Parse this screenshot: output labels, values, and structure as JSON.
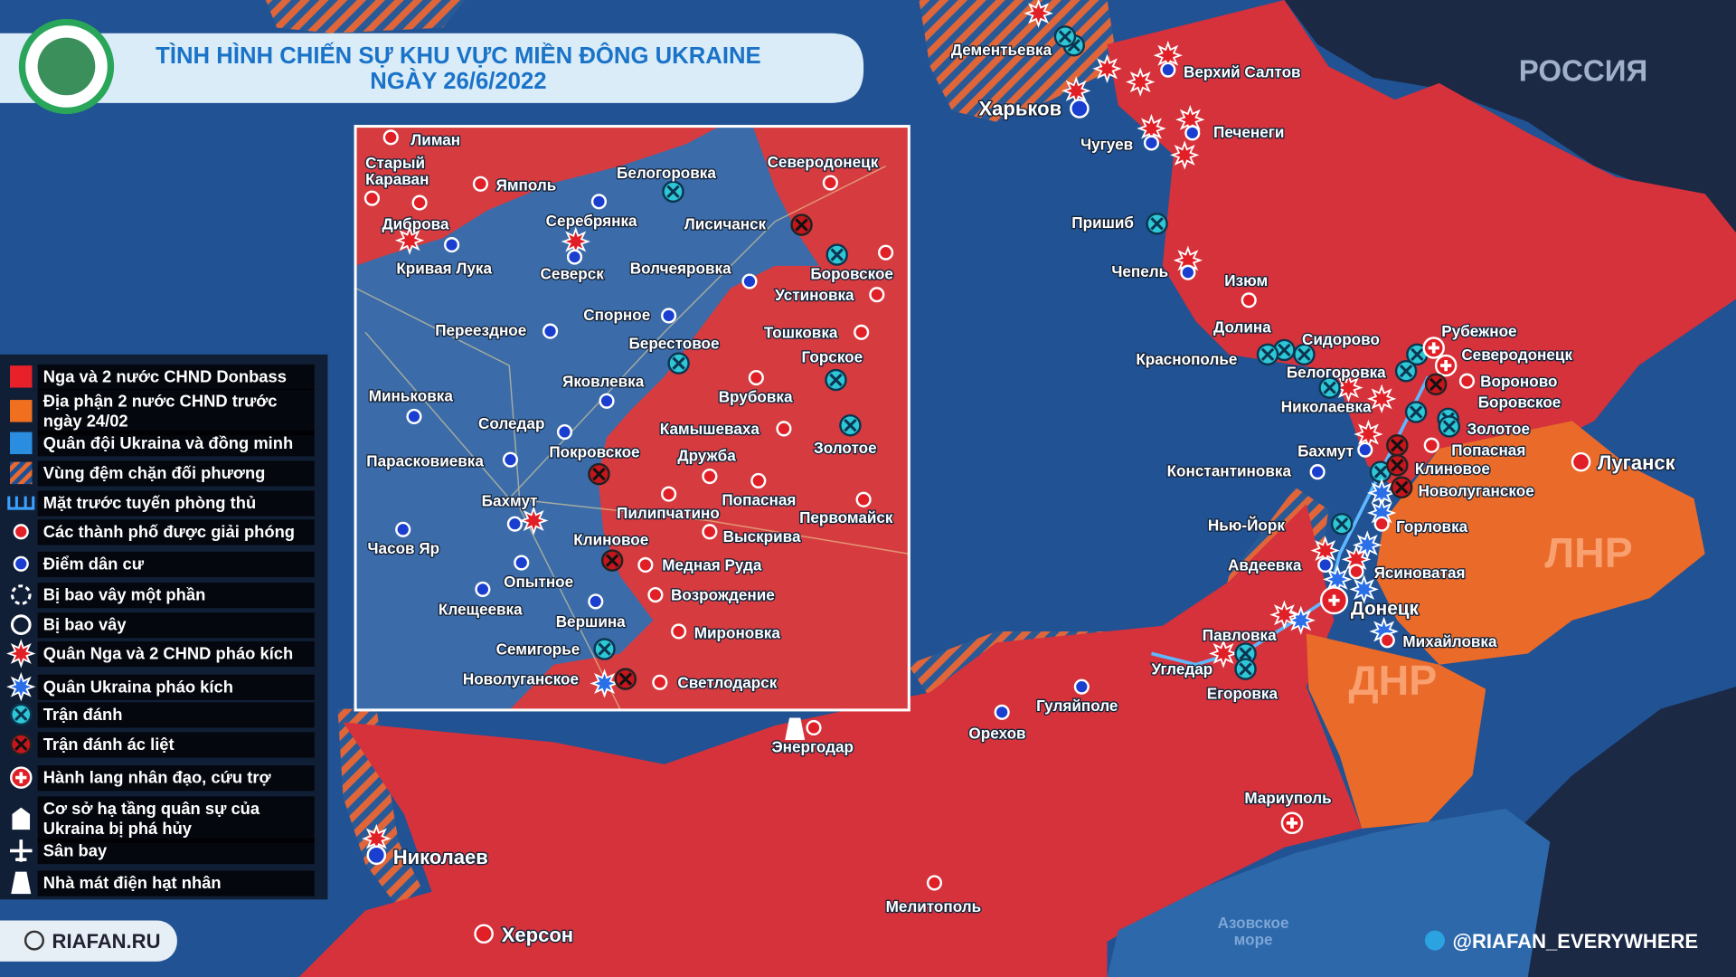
{
  "header": {
    "title": [
      "TÌNH HÌNH CHIẾN SỰ KHU VỰC MIỀN ĐÔNG UKRAINE",
      "NGÀY 26/6/2022"
    ]
  },
  "watermark": "РОССИЯ",
  "legend": {
    "items": [
      [
        "Nga và 2 nước CHND Donbass"
      ],
      [
        "Địa phận 2 nước CHND trước",
        "ngày 24/02"
      ],
      [
        "Quân đội Ukraina và đồng minh"
      ],
      [
        "Vùng đệm chặn đối phương"
      ],
      [
        "Mặt trước tuyến phòng thủ"
      ],
      [
        "Các thành phố được giải phóng"
      ],
      [
        "Điểm dân cư"
      ],
      [
        "Bị bao vây một phần"
      ],
      [
        "Bị bao vây"
      ],
      [
        "Quân Nga và 2 CHND pháo kích"
      ],
      [
        "Quân Ukraina pháo kích"
      ],
      [
        "Trận đánh"
      ],
      [
        "Trận đánh ác liệt"
      ],
      [
        "Hành lang nhân đạo, cứu trợ"
      ],
      [
        "Cơ sở hạ tầng quân sự của",
        "Ukraina bị phá hủy"
      ],
      [
        "Sân bay"
      ],
      [
        "Nhà mát điện hạt nhân"
      ]
    ]
  },
  "regions": [
    "ЛНР",
    "ДНР"
  ],
  "inset_places": [
    "Лиман",
    [
      "Старый",
      "Караван"
    ],
    "Ямполь",
    "Диброва",
    "Кривая Лука",
    "Серебрянка",
    "Северск",
    "Белогоровка",
    "Северодонецк",
    "Лисичанск",
    "Волчеяровка",
    "Боровское",
    "Устиновка",
    "Спорное",
    "Тошковка",
    "Переездное",
    "Берестовое",
    "Горское",
    "Яковлевка",
    "Врубовка",
    "Миньковка",
    "Соледар",
    "Камышеваха",
    "Золотое",
    "Параскoвиевка",
    "Покровское",
    "Дружба",
    "Бахмут",
    "Попасная",
    "Пилипчатино",
    "Первомайск",
    "Выскрива",
    "Часов Яр",
    "Клиновое",
    "Медная Руда",
    "Опытное",
    "Возрождение",
    "Клещеевка",
    "Вершина",
    "Мироновка",
    "Семигорье",
    "Новолуганское",
    "Светлодарск"
  ],
  "map_places": [
    "Дементьевка",
    "Харьков",
    "Верхий Салтов",
    "Чугуев",
    "Печенеги",
    "Пришиб",
    "Чепель",
    "Изюм",
    "Долина",
    "Сидорово",
    "Рубежное",
    "Краснополье",
    "Белогоровка",
    "Северодонецк",
    "Вороново",
    "Боровское",
    "Николаевка",
    "Золотое",
    "Бахмут",
    "Попасная",
    "Константиновка",
    "Клиновое",
    "Новолуганское",
    "Луганск",
    "Нью-Йорк",
    "Горловка",
    "Авдеевка",
    "Ясиноватая",
    "Донецк",
    "Михайловка",
    "Павловка",
    "Угледар",
    "Егоровка",
    "Гуляйполе",
    "Орехов",
    "Энергодар",
    "Мариуполь",
    "Николаев",
    "Мелитополь",
    "Херсон"
  ],
  "sea": [
    "Азовское",
    "море"
  ],
  "footer": {
    "site": "RIAFAN.RU",
    "handle": "@RIAFAN_EVERYWHERE"
  }
}
